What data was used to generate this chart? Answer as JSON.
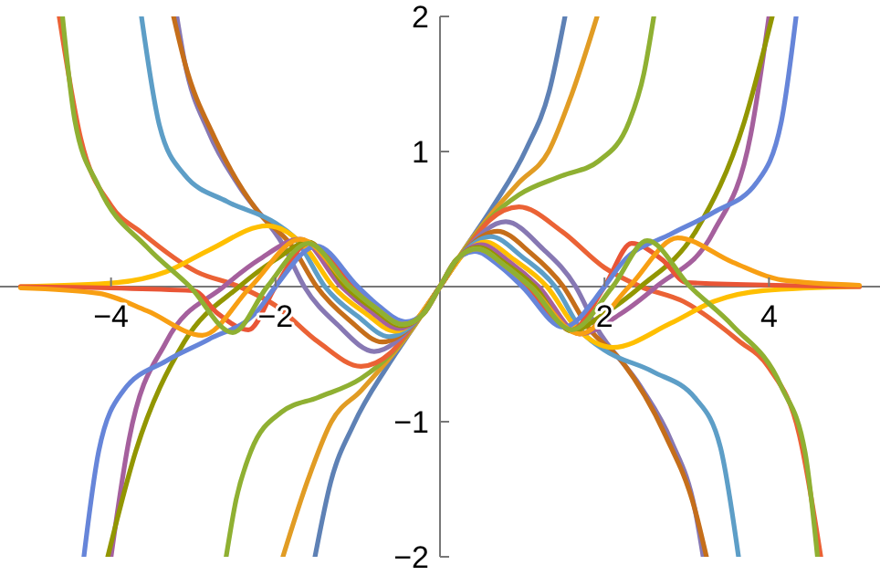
{
  "chart_data": {
    "type": "line",
    "xlim": [
      -5.35,
      5.35
    ],
    "ylim": [
      -2,
      2
    ],
    "xticks": [
      -4,
      -2,
      2,
      4
    ],
    "yticks": [
      -2,
      -1,
      1,
      2
    ],
    "series": [
      {
        "color": "#5e81b5",
        "x": [
          -1.52,
          -1.33,
          -1.05,
          -0.64,
          -0.3,
          0,
          0.3,
          0.64,
          1.05,
          1.33,
          1.52
        ],
        "values": [
          -2,
          -1.45,
          -1.02,
          -0.59,
          -0.28,
          0,
          0.28,
          0.59,
          1.02,
          1.45,
          2
        ]
      },
      {
        "color": "#e19c24",
        "x": [
          -1.91,
          -1.6,
          -1.32,
          -0.96,
          -0.6,
          -0.3,
          0,
          0.3,
          0.6,
          0.96,
          1.32,
          1.6,
          1.91
        ],
        "values": [
          -2,
          -1.42,
          -1,
          -0.77,
          -0.52,
          -0.28,
          0,
          0.28,
          0.52,
          0.77,
          1,
          1.42,
          2
        ]
      },
      {
        "color": "#8fb032",
        "x": [
          -2.6,
          -2.48,
          -2.3,
          -1.93,
          -1.48,
          -0.96,
          -0.6,
          -0.3,
          0,
          0.3,
          0.6,
          0.96,
          1.48,
          1.93,
          2.3,
          2.48,
          2.6
        ],
        "values": [
          -2,
          -1.58,
          -1.22,
          -0.93,
          -0.82,
          -0.68,
          -0.5,
          -0.27,
          0,
          0.27,
          0.5,
          0.68,
          0.82,
          0.93,
          1.22,
          1.58,
          2
        ]
      },
      {
        "color": "#eb6235",
        "x": [
          -4.63,
          -4.37,
          -4,
          -3.63,
          -2.96,
          -2.44,
          -2,
          -1.48,
          -0.96,
          -0.6,
          -0.3,
          0,
          0.3,
          0.6,
          0.96,
          1.48,
          2,
          2.44,
          2.96,
          3.63,
          4,
          4.37,
          4.63
        ],
        "values": [
          2,
          1.1,
          0.6,
          0.4,
          0.11,
          0,
          -0.14,
          -0.41,
          -0.59,
          -0.49,
          -0.26,
          0,
          0.26,
          0.49,
          0.59,
          0.41,
          0.14,
          0,
          -0.11,
          -0.4,
          -0.6,
          -1.1,
          -2
        ]
      },
      {
        "color": "#8778b3",
        "x": [
          -3.2,
          -3.11,
          -2.81,
          -2.44,
          -1.9,
          -1.65,
          -1.25,
          -0.8,
          -0.3,
          0,
          0.3,
          0.8,
          1.25,
          1.65,
          1.9,
          2.44,
          2.81,
          3.11,
          3.2
        ],
        "values": [
          2,
          1.68,
          1.14,
          0.74,
          0.3,
          0,
          -0.28,
          -0.48,
          -0.26,
          0,
          0.26,
          0.48,
          0.28,
          0,
          -0.3,
          -0.74,
          -1.14,
          -1.68,
          -2
        ]
      },
      {
        "color": "#c56e1a",
        "x": [
          -3.24,
          -3.1,
          -2.74,
          -2.22,
          -1.8,
          -1.5,
          -1.1,
          -0.7,
          -0.3,
          0,
          0.3,
          0.7,
          1.1,
          1.5,
          1.8,
          2.22,
          2.74,
          3.1,
          3.24
        ],
        "values": [
          2,
          1.65,
          1.1,
          0.56,
          0.3,
          0,
          -0.25,
          -0.41,
          -0.26,
          0,
          0.26,
          0.41,
          0.25,
          0,
          -0.3,
          -0.56,
          -1.1,
          -1.65,
          -2
        ]
      },
      {
        "color": "#5d9ec7",
        "x": [
          -3.63,
          -3.41,
          -3.11,
          -2.59,
          -2,
          -1.75,
          -1.4,
          -1,
          -0.62,
          -0.3,
          0,
          0.3,
          0.62,
          1,
          1.4,
          1.75,
          2,
          2.59,
          3.11,
          3.41,
          3.63
        ],
        "values": [
          2,
          1.19,
          0.83,
          0.63,
          0.47,
          0.35,
          0,
          -0.22,
          -0.37,
          -0.26,
          0,
          0.26,
          0.37,
          0.22,
          0,
          -0.35,
          -0.47,
          -0.63,
          -0.83,
          -1.19,
          -2
        ]
      },
      {
        "color": "#ffbf00",
        "x": [
          -5.1,
          -3.93,
          -3.33,
          -2.81,
          -2.1,
          -1.65,
          -1.3,
          -0.9,
          -0.55,
          -0.3,
          0,
          0.3,
          0.55,
          0.9,
          1.3,
          1.65,
          2.1,
          2.81,
          3.33,
          3.93,
          5.1
        ],
        "values": [
          0,
          0.03,
          0.11,
          0.27,
          0.45,
          0.3,
          0,
          -0.2,
          -0.33,
          -0.25,
          0,
          0.25,
          0.33,
          0.2,
          0,
          -0.3,
          -0.45,
          -0.27,
          -0.11,
          -0.03,
          0
        ]
      },
      {
        "color": "#a5609d",
        "x": [
          -4,
          -3.78,
          -3.33,
          -2.63,
          -2.2,
          -1.7,
          -1.2,
          -0.85,
          -0.5,
          -0.25,
          0,
          0.25,
          0.5,
          0.85,
          1.2,
          1.7,
          2.2,
          2.63,
          3.33,
          3.78,
          4
        ],
        "values": [
          -2,
          -1.13,
          -0.41,
          0,
          0.2,
          0.35,
          0,
          -0.18,
          -0.31,
          -0.23,
          0,
          0.23,
          0.31,
          0.18,
          0,
          -0.35,
          -0.2,
          0,
          0.41,
          1.13,
          2
        ]
      },
      {
        "color": "#929600",
        "x": [
          -4.04,
          -3.7,
          -3.11,
          -2.44,
          -2,
          -1.6,
          -1.15,
          -0.8,
          -0.47,
          -0.25,
          0,
          0.25,
          0.47,
          0.8,
          1.15,
          1.6,
          2,
          2.44,
          3.11,
          3.7,
          4.04
        ],
        "values": [
          -2,
          -1.22,
          -0.41,
          0,
          0.2,
          0.33,
          0,
          -0.17,
          -0.29,
          -0.23,
          0,
          0.23,
          0.29,
          0.17,
          0,
          -0.33,
          -0.2,
          0,
          0.41,
          1.22,
          2
        ]
      },
      {
        "color": "#e95536",
        "x": [
          -5.1,
          -3,
          -2.7,
          -2.33,
          -2,
          -1.6,
          -1.05,
          -0.75,
          -0.44,
          -0.2,
          0,
          0.2,
          0.44,
          0.75,
          1.05,
          1.6,
          2,
          2.33,
          2.7,
          3,
          5.1
        ],
        "values": [
          0,
          -0.03,
          -0.2,
          -0.32,
          0,
          0.32,
          0,
          -0.15,
          -0.27,
          -0.2,
          0,
          0.2,
          0.27,
          0.15,
          0,
          -0.32,
          0,
          0.32,
          0.2,
          0.03,
          0
        ]
      },
      {
        "color": "#6685d9",
        "x": [
          -4.33,
          -4.15,
          -3.85,
          -3.33,
          -2.81,
          -2.22,
          -2,
          -1.5,
          -1,
          -0.75,
          -0.42,
          -0.2,
          0,
          0.2,
          0.42,
          0.75,
          1,
          1.5,
          2,
          2.22,
          2.81,
          3.33,
          3.85,
          4.15,
          4.33
        ],
        "values": [
          -2,
          -1.22,
          -0.77,
          -0.55,
          -0.39,
          -0.18,
          0,
          0.3,
          0,
          -0.14,
          -0.26,
          -0.2,
          0,
          0.2,
          0.26,
          0.14,
          0,
          -0.3,
          0,
          0.18,
          0.39,
          0.55,
          0.77,
          1.22,
          2
        ]
      },
      {
        "color": "#f89f13",
        "x": [
          -5.1,
          -4.15,
          -3.56,
          -2.89,
          -2.3,
          -1.7,
          -1.1,
          -0.8,
          -0.45,
          -0.2,
          0,
          0.2,
          0.45,
          0.8,
          1.1,
          1.7,
          2.3,
          2.89,
          3.56,
          4.15,
          5.1
        ],
        "values": [
          -0.01,
          -0.05,
          -0.18,
          -0.36,
          0,
          0.35,
          0,
          -0.15,
          -0.28,
          -0.2,
          0,
          0.2,
          0.28,
          0.15,
          0,
          -0.35,
          0,
          0.36,
          0.18,
          0.05,
          0.01
        ]
      },
      {
        "color": "#8fb032",
        "x": [
          -4.59,
          -4.44,
          -4.15,
          -3.56,
          -3.04,
          -2.52,
          -2.1,
          -1.6,
          -1.1,
          -0.8,
          -0.45,
          -0.2,
          0,
          0.2,
          0.45,
          0.8,
          1.1,
          1.6,
          2.1,
          2.52,
          3.04,
          3.56,
          4.15,
          4.44,
          4.59
        ],
        "values": [
          2,
          1.23,
          0.74,
          0.29,
          0,
          -0.34,
          0,
          0.32,
          0,
          -0.15,
          -0.28,
          -0.2,
          0,
          0.2,
          0.28,
          0.15,
          0,
          -0.32,
          0,
          0.34,
          0,
          -0.29,
          -0.74,
          -1.23,
          -2
        ]
      }
    ]
  }
}
